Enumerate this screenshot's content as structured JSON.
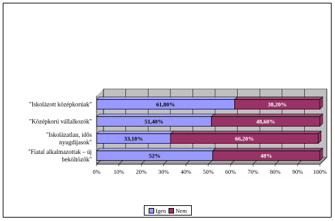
{
  "chart_data": {
    "type": "bar",
    "orientation": "horizontal",
    "stacked": "percent",
    "categories": [
      "\"Iskolázott középkorúak\"",
      "\"Középkorú vállalkozók\"",
      "\"Iskolázatlan, idős nyugdíjasok\"",
      "\"Fiatal alkalmazottak – új beköltözők\""
    ],
    "category_lines": [
      [
        "\"Iskolázott középkorúak\""
      ],
      [
        "\"Középkorú vállalkozók\""
      ],
      [
        "\"Iskolázatlan, idős",
        "nyugdíjasok\""
      ],
      [
        "\"Fiatal alkalmazottak – új",
        "beköltözők\""
      ]
    ],
    "series": [
      {
        "name": "Igen",
        "color": "#9999ff",
        "values": [
          61.8,
          51.4,
          33.1,
          52
        ],
        "labels": [
          "61,80%",
          "51,40%",
          "33,10%",
          "52%"
        ]
      },
      {
        "name": "Nem",
        "color": "#993366",
        "values": [
          38.2,
          48.6,
          66.2,
          48
        ],
        "labels": [
          "38,20%",
          "48,60%",
          "66,20%",
          "48%"
        ]
      }
    ],
    "xlim": [
      0,
      100
    ],
    "xticks": [
      "0%",
      "10%",
      "20%",
      "30%",
      "40%",
      "50%",
      "60%",
      "70%",
      "80%",
      "90%",
      "100%"
    ],
    "grid": true,
    "legend_position": "bottom",
    "wall_color": "#c0c0c0"
  }
}
